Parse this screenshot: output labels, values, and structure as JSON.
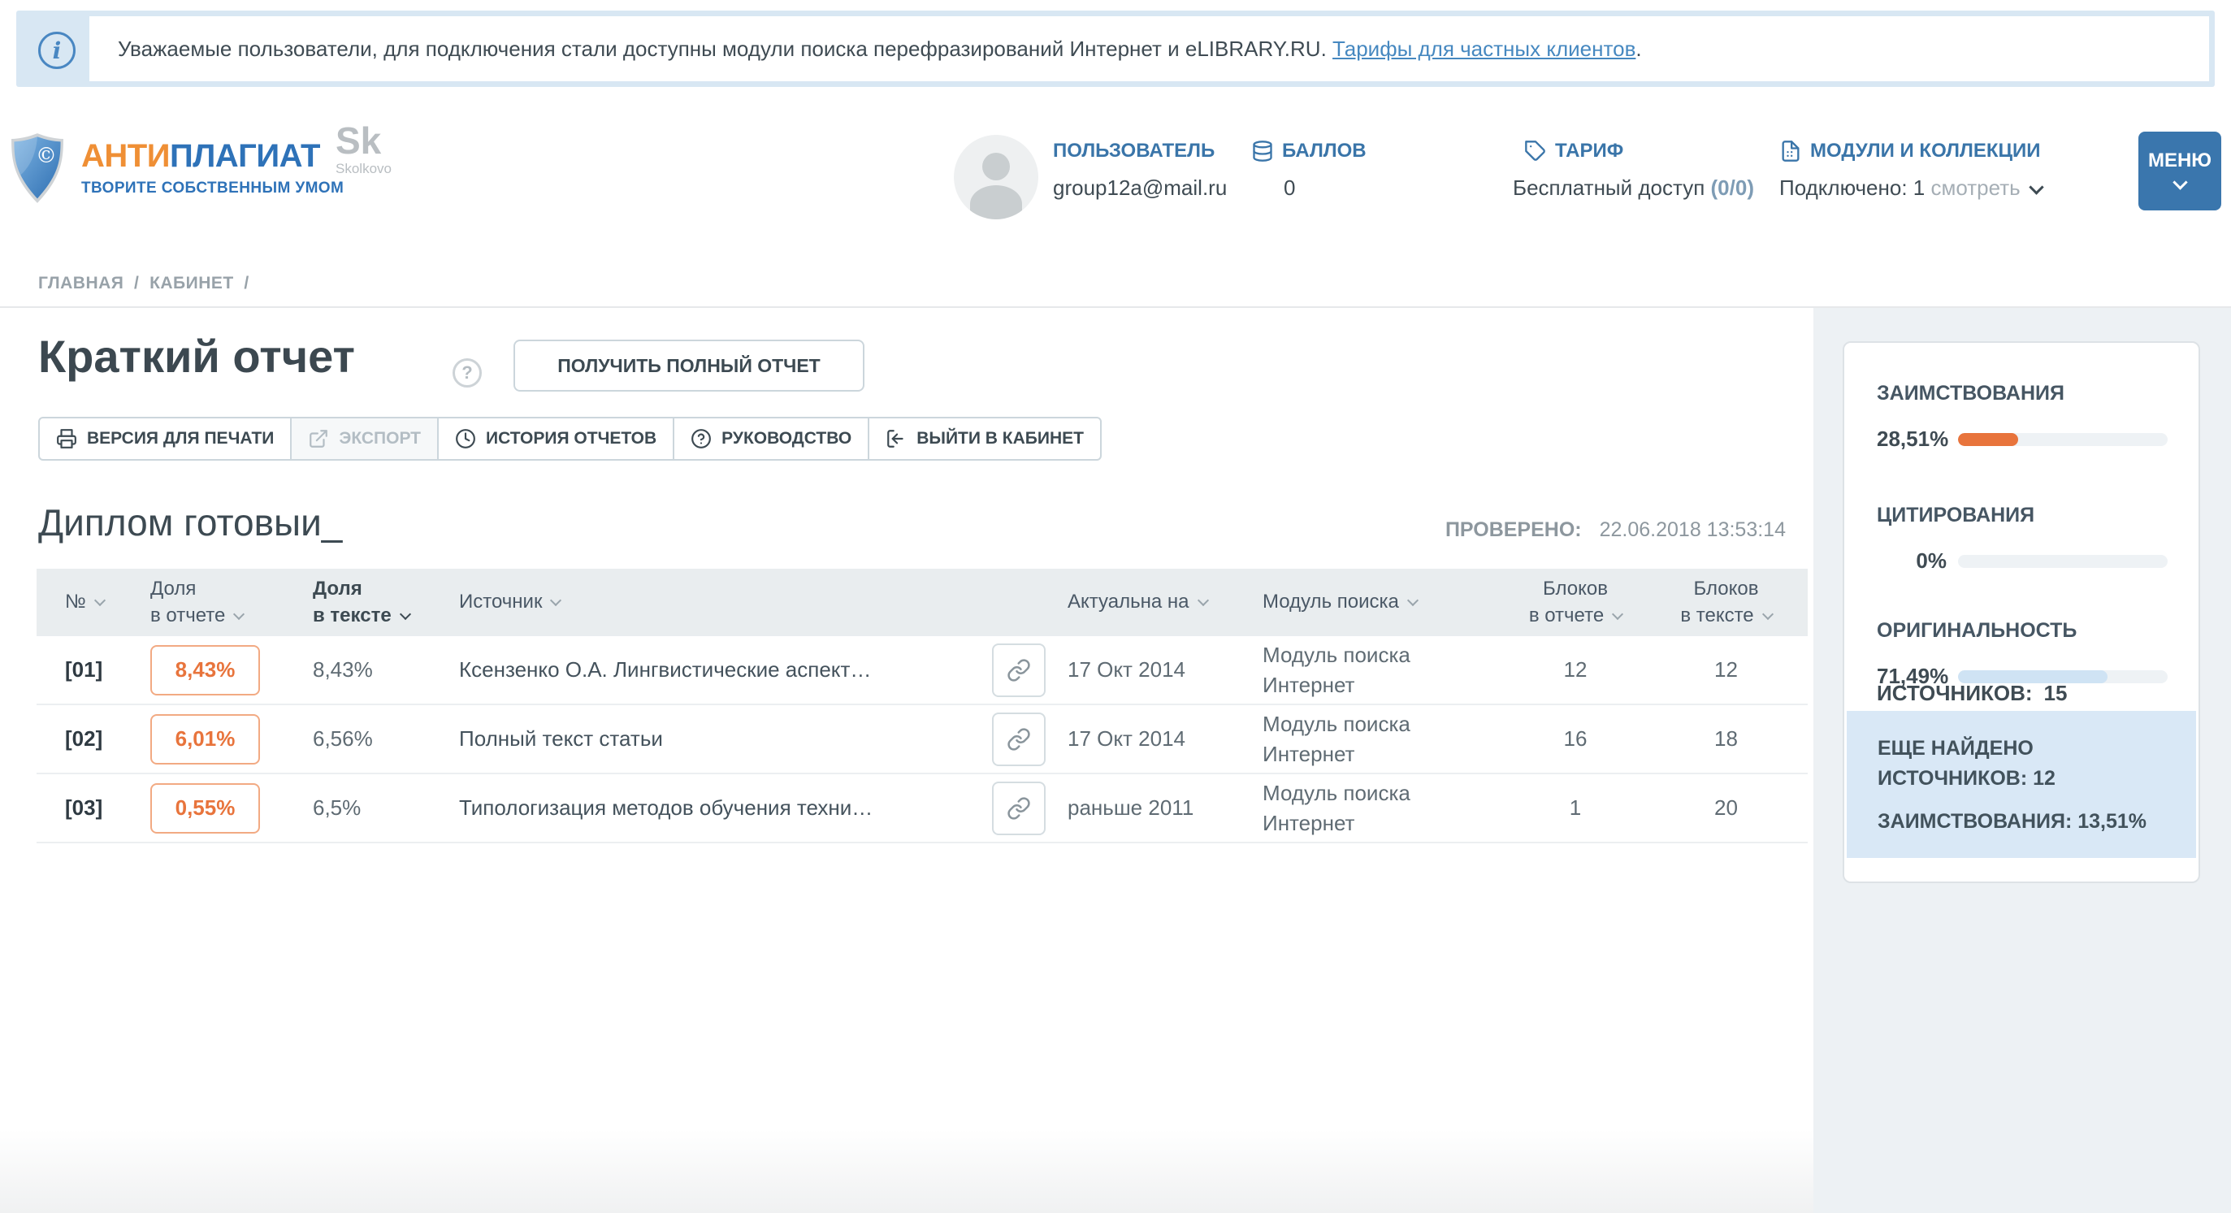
{
  "notice": {
    "prefix": "Уважаемые пользователи, для подключения стали доступны модули поиска перефразирований Интернет и eLIBRARY.RU.",
    "link": "Тарифы для частных клиентов",
    "suffix": "."
  },
  "header": {
    "logo": {
      "brand_orange": "АНТИ",
      "brand_blue": "ПЛАГИАТ",
      "tagline": "ТВОРИТЕ СОБСТВЕННЫМ УМОМ",
      "copyright": "©"
    },
    "skolkovo": {
      "big": "Sk",
      "small": "Skolkovo"
    },
    "user": {
      "label": "ПОЛЬЗОВАТЕЛЬ",
      "email": "group12a@mail.ru"
    },
    "points": {
      "label": "БАЛЛОВ",
      "value": "0"
    },
    "tariff": {
      "label": "ТАРИФ",
      "value": "Бесплатный доступ",
      "quota": "(0/0)"
    },
    "modules": {
      "label": "МОДУЛИ И КОЛЛЕКЦИИ",
      "connected": "Подключено: 1",
      "view_link": "смотреть"
    },
    "menu_button": "МЕНЮ"
  },
  "breadcrumb": {
    "home": "ГЛАВНАЯ",
    "cabinet": "КАБИНЕТ",
    "sep": "/"
  },
  "report": {
    "title": "Краткий отчет",
    "help": "?",
    "full_report_button": "ПОЛУЧИТЬ ПОЛНЫЙ ОТЧЕТ",
    "toolbar": {
      "print": "ВЕРСИЯ ДЛЯ ПЕЧАТИ",
      "export": "ЭКСПОРТ",
      "history": "ИСТОРИЯ ОТЧЕТОВ",
      "guide": "РУКОВОДСТВО",
      "exit": "ВЫЙТИ В КАБИНЕТ"
    },
    "document_title": "Диплом готовыи_",
    "checked_label": "ПРОВЕРЕНО:",
    "checked_datetime": "22.06.2018 13:53:14"
  },
  "table": {
    "headers": {
      "num": "№",
      "share_report_1": "Доля",
      "share_report_2": "в отчете",
      "share_text_1": "Доля",
      "share_text_2": "в тексте",
      "source": "Источник",
      "actual": "Актуальна на",
      "module": "Модуль поиска",
      "blocks_report_1": "Блоков",
      "blocks_report_2": "в отчете",
      "blocks_text_1": "Блоков",
      "blocks_text_2": "в тексте"
    },
    "rows": [
      {
        "num": "[01]",
        "share_report": "8,43%",
        "share_text": "8,43%",
        "source": "Ксензенко О.А. Лингвистические аспект…",
        "actual": "17 Окт 2014",
        "module": "Модуль поиска Интернет",
        "blocks_report": "12",
        "blocks_text": "12"
      },
      {
        "num": "[02]",
        "share_report": "6,01%",
        "share_text": "6,56%",
        "source": "Полный текст статьи",
        "actual": "17 Окт 2014",
        "module": "Модуль поиска Интернет",
        "blocks_report": "16",
        "blocks_text": "18"
      },
      {
        "num": "[03]",
        "share_report": "0,55%",
        "share_text": "6,5%",
        "source": "Типологизация методов обучения техни…",
        "actual": "раньше 2011",
        "module": "Модуль поиска Интернет",
        "blocks_report": "1",
        "blocks_text": "20"
      }
    ]
  },
  "sidebar": {
    "metrics": [
      {
        "label": "ЗАИМСТВОВАНИЯ",
        "value": "28,51%",
        "percent": 28.51,
        "bar_color": "#e8743c"
      },
      {
        "label": "ЦИТИРОВАНИЯ",
        "value": "0%",
        "percent": 0,
        "bar_color": "#e8743c"
      },
      {
        "label": "ОРИГИНАЛЬНОСТЬ",
        "value": "71,49%",
        "percent": 71.49,
        "bar_color": "#cfe3f4"
      }
    ],
    "sources_label": "ИСТОЧНИКОВ:",
    "sources_value": "15",
    "extra": {
      "found_line1": "ЕЩЕ НАЙДЕНО",
      "found_line2": "ИСТОЧНИКОВ: 12",
      "borrowed": "ЗАИМСТВОВАНИЯ: 13,51%"
    }
  },
  "colors": {
    "accent_orange": "#e8743c",
    "brand_blue": "#3a75a9",
    "link_blue": "#4688c0",
    "originality_blue": "#cfe3f4"
  }
}
